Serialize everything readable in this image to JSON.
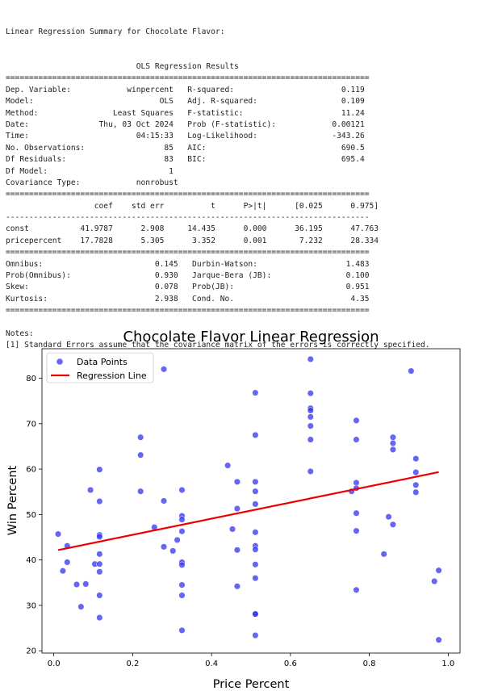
{
  "report": {
    "heading": "Linear Regression Summary for Chocolate Flavor:",
    "lines": [
      "                            OLS Regression Results                            ",
      "==============================================================================",
      "Dep. Variable:            winpercent   R-squared:                       0.119",
      "Model:                           OLS   Adj. R-squared:                  0.109",
      "Method:                Least Squares   F-statistic:                     11.24",
      "Date:               Thu, 03 Oct 2024   Prob (F-statistic):            0.00121",
      "Time:                       04:15:33   Log-Likelihood:                -343.26",
      "No. Observations:                 85   AIC:                             690.5",
      "Df Residuals:                     83   BIC:                             695.4",
      "Df Model:                          1                                         ",
      "Covariance Type:            nonrobust                                         ",
      "==============================================================================",
      "                   coef    std err          t      P>|t|      [0.025      0.975]",
      "------------------------------------------------------------------------------",
      "const           41.9787      2.908     14.435      0.000      36.195      47.763",
      "pricepercent    17.7828      5.305      3.352      0.001       7.232      28.334",
      "==============================================================================",
      "Omnibus:                        0.145   Durbin-Watson:                   1.483",
      "Prob(Omnibus):                  0.930   Jarque-Bera (JB):                0.100",
      "Skew:                           0.078   Prob(JB):                        0.951",
      "Kurtosis:                       2.938   Cond. No.                         4.35",
      "==============================================================================",
      "",
      "Notes:",
      "[1] Standard Errors assume that the covariance matrix of the errors is correctly specified."
    ]
  },
  "chart_data": {
    "type": "scatter",
    "title": "Chocolate Flavor Linear Regression",
    "xlabel": "Price Percent",
    "ylabel": "Win Percent",
    "xlim": [
      -0.03,
      1.03
    ],
    "ylim": [
      19.5,
      86.5
    ],
    "xticks": [
      0.0,
      0.2,
      0.4,
      0.6,
      0.8,
      1.0
    ],
    "xtick_labels": [
      "0.0",
      "0.2",
      "0.4",
      "0.6",
      "0.8",
      "1.0"
    ],
    "yticks": [
      20,
      30,
      40,
      50,
      60,
      70,
      80
    ],
    "ytick_labels": [
      "20",
      "30",
      "40",
      "50",
      "60",
      "70",
      "80"
    ],
    "grid": false,
    "legend_position": "top-left",
    "series": [
      {
        "name": "Data Points",
        "kind": "scatter",
        "color": "#3333ee",
        "x": [
          0.011,
          0.023,
          0.034,
          0.034,
          0.058,
          0.069,
          0.081,
          0.093,
          0.104,
          0.116,
          0.116,
          0.116,
          0.116,
          0.116,
          0.116,
          0.116,
          0.116,
          0.116,
          0.22,
          0.22,
          0.22,
          0.255,
          0.279,
          0.279,
          0.279,
          0.313,
          0.325,
          0.325,
          0.325,
          0.325,
          0.325,
          0.325,
          0.325,
          0.325,
          0.325,
          0.441,
          0.453,
          0.465,
          0.465,
          0.465,
          0.465,
          0.511,
          0.511,
          0.511,
          0.511,
          0.511,
          0.511,
          0.511,
          0.511,
          0.511,
          0.511,
          0.511,
          0.511,
          0.511,
          0.651,
          0.651,
          0.651,
          0.651,
          0.651,
          0.651,
          0.651,
          0.651,
          0.755,
          0.767,
          0.767,
          0.767,
          0.767,
          0.767,
          0.767,
          0.767,
          0.837,
          0.849,
          0.86,
          0.86,
          0.86,
          0.86,
          0.906,
          0.918,
          0.918,
          0.918,
          0.918,
          0.965,
          0.976,
          0.976,
          0.302
        ],
        "y": [
          45.7,
          37.6,
          43.1,
          39.5,
          34.6,
          29.7,
          34.7,
          55.4,
          39.1,
          59.9,
          52.9,
          45.5,
          45.1,
          41.3,
          39.1,
          37.4,
          32.2,
          27.3,
          67.0,
          63.1,
          55.1,
          47.2,
          82.0,
          53.0,
          42.9,
          44.4,
          55.4,
          49.7,
          48.9,
          46.3,
          39.5,
          38.9,
          34.5,
          32.2,
          24.5,
          60.8,
          46.8,
          57.2,
          51.3,
          42.2,
          34.2,
          76.8,
          67.5,
          57.2,
          55.1,
          52.3,
          46.1,
          43.1,
          42.3,
          39.0,
          36.0,
          28.1,
          23.4,
          28.1,
          84.2,
          76.7,
          73.4,
          72.9,
          71.5,
          69.5,
          66.5,
          59.5,
          55.1,
          70.7,
          66.5,
          57.0,
          55.8,
          50.3,
          46.4,
          33.4,
          41.3,
          49.5,
          67.0,
          65.7,
          64.3,
          47.8,
          81.6,
          62.3,
          59.3,
          56.5,
          54.9,
          35.3,
          37.7,
          22.4,
          42.0
        ]
      },
      {
        "name": "Regression Line",
        "kind": "line",
        "color": "#ee0000",
        "intercept": 41.9787,
        "slope": 17.7828,
        "x_range": [
          0.011,
          0.976
        ]
      }
    ]
  }
}
